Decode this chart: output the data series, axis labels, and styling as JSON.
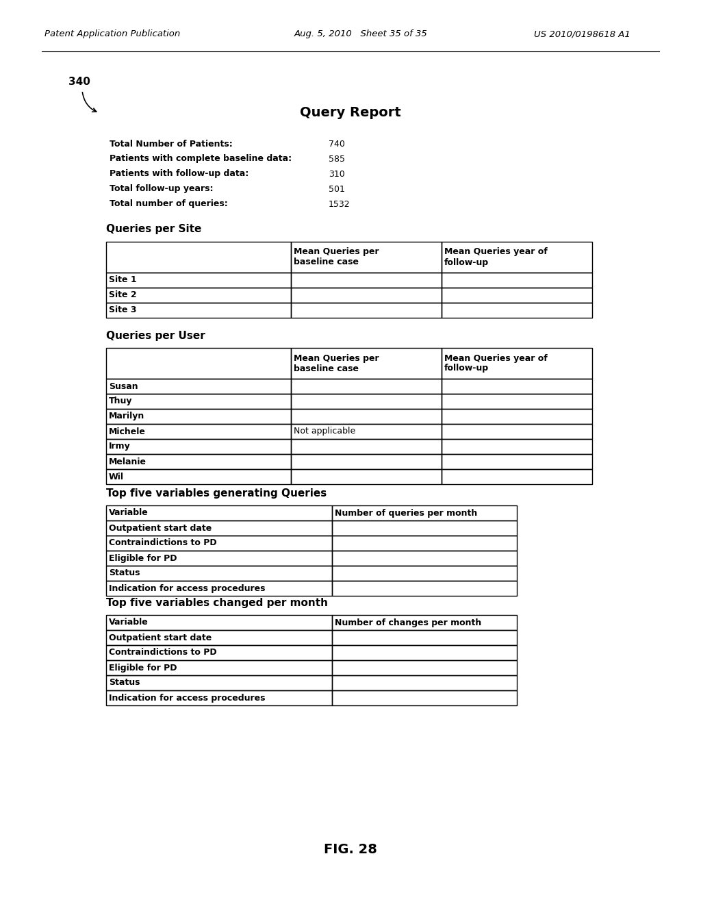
{
  "header_left": "Patent Application Publication",
  "header_mid": "Aug. 5, 2010   Sheet 35 of 35",
  "header_right": "US 2010/0198618 A1",
  "label_340": "340",
  "title": "Query Report",
  "summary_rows": [
    [
      "Total Number of Patients:",
      "740"
    ],
    [
      "Patients with complete baseline data:",
      "585"
    ],
    [
      "Patients with follow-up data:",
      "310"
    ],
    [
      "Total follow-up years:",
      "501"
    ],
    [
      "Total number of queries:",
      "1532"
    ]
  ],
  "section1_title": "Queries per Site",
  "site_table_header": [
    "",
    "Mean Queries per\nbaseline case",
    "Mean Queries year of\nfollow-up"
  ],
  "site_table_rows": [
    [
      "Site 1",
      "",
      ""
    ],
    [
      "Site 2",
      "",
      ""
    ],
    [
      "Site 3",
      "",
      ""
    ]
  ],
  "section2_title": "Queries per User",
  "user_table_header": [
    "",
    "Mean Queries per\nbaseline case",
    "Mean Queries year of\nfollow-up"
  ],
  "user_table_rows": [
    [
      "Susan",
      "",
      ""
    ],
    [
      "Thuy",
      "",
      ""
    ],
    [
      "Marilyn",
      "",
      ""
    ],
    [
      "Michele",
      "Not applicable",
      ""
    ],
    [
      "Irmy",
      "",
      ""
    ],
    [
      "Melanie",
      "",
      ""
    ],
    [
      "Wil",
      "",
      ""
    ]
  ],
  "section3_title": "Top five variables generating Queries",
  "queries_table_header": [
    "Variable",
    "Number of queries per month"
  ],
  "queries_table_rows": [
    [
      "Outpatient start date",
      ""
    ],
    [
      "Contraindictions to PD",
      ""
    ],
    [
      "Eligible for PD",
      ""
    ],
    [
      "Status",
      ""
    ],
    [
      "Indication for access procedures",
      ""
    ]
  ],
  "section4_title": "Top five variables changed per month",
  "changes_table_header": [
    "Variable",
    "Number of changes per month"
  ],
  "changes_table_rows": [
    [
      "Outpatient start date",
      ""
    ],
    [
      "Contraindictions to PD",
      ""
    ],
    [
      "Eligible for PD",
      ""
    ],
    [
      "Status",
      ""
    ],
    [
      "Indication for access procedures",
      ""
    ]
  ],
  "fig_label": "FIG. 28",
  "bg_color": "#ffffff"
}
